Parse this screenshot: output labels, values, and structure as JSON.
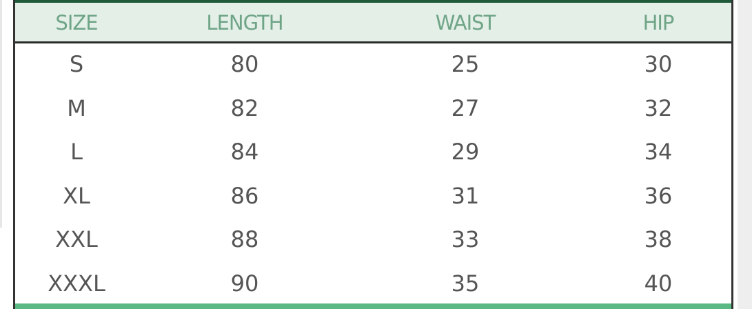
{
  "columns": [
    "SIZE",
    "LENGTH",
    "WAIST",
    "HIP"
  ],
  "rows": [
    [
      "S",
      "80",
      "25",
      "30"
    ],
    [
      "M",
      "82",
      "27",
      "32"
    ],
    [
      "L",
      "84",
      "29",
      "34"
    ],
    [
      "XL",
      "86",
      "31",
      "36"
    ],
    [
      "XXL",
      "88",
      "33",
      "38"
    ],
    [
      "XXXL",
      "90",
      "35",
      "40"
    ]
  ],
  "colors": {
    "header_bg": "#e3efe7",
    "header_text": "#6fa487",
    "accent_bottom": "#5ab983",
    "top_border": "#1f5a3a"
  }
}
